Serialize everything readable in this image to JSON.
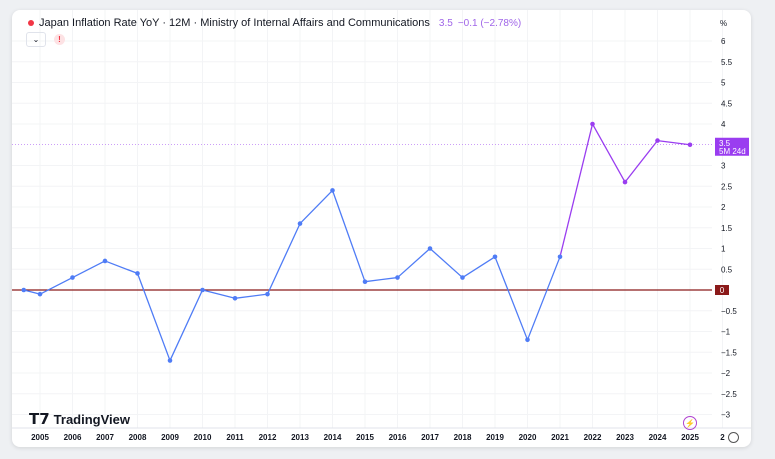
{
  "header": {
    "title": "Japan Inflation Rate YoY · 12M · Ministry of Internal Affairs and Communications",
    "last": "3.5",
    "change": "−0.1 (−2.78%)"
  },
  "price_label": {
    "value": "3.5",
    "countdown": "5M 24d"
  },
  "zero_label": "0",
  "unit": "%",
  "logo": "TradingView",
  "colors": {
    "line_blue": "#4f7cf6",
    "line_purple": "#9a3df0",
    "zero_line": "#8b1a1a"
  },
  "chart_data": {
    "type": "line",
    "title": "Japan Inflation Rate YoY",
    "ylabel": "%",
    "ylim": [
      -3.3,
      6.3
    ],
    "yticks": [
      6,
      5.5,
      5,
      4.5,
      4,
      3,
      2.5,
      2,
      1.5,
      1,
      0.5,
      -0.5,
      -1,
      -1.5,
      -2,
      -2.5,
      -3
    ],
    "xticks": [
      "2005",
      "2006",
      "2007",
      "2008",
      "2009",
      "2010",
      "2011",
      "2012",
      "2013",
      "2014",
      "2015",
      "2016",
      "2017",
      "2018",
      "2019",
      "2020",
      "2021",
      "2022",
      "2023",
      "2024",
      "2025",
      "2"
    ],
    "x": [
      2004.5,
      2005,
      2006,
      2007,
      2008,
      2009,
      2010,
      2011,
      2012,
      2013,
      2014,
      2015,
      2016,
      2017,
      2018,
      2019,
      2020,
      2021,
      2022,
      2023,
      2024,
      2025
    ],
    "values": [
      0,
      -0.1,
      0.3,
      0.7,
      0.4,
      -1.7,
      0,
      -0.2,
      -0.1,
      1.6,
      2.4,
      0.2,
      0.3,
      1.0,
      0.3,
      0.8,
      -1.2,
      0.8,
      4.0,
      2.6,
      3.6,
      3.5
    ],
    "purple_from": 2021
  }
}
